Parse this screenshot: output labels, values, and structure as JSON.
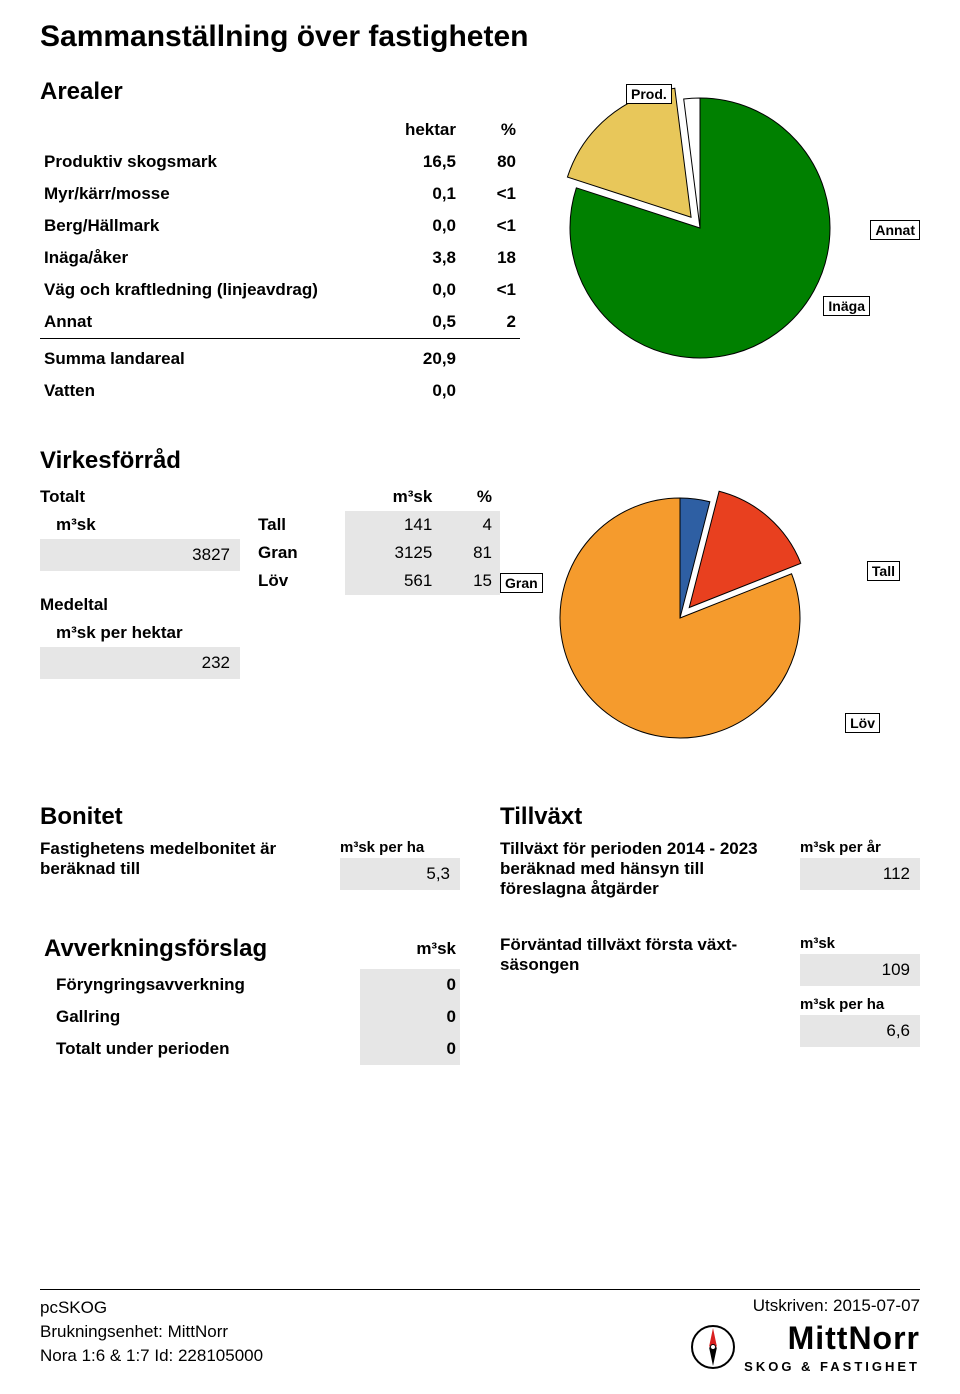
{
  "title": "Sammanställning över fastigheten",
  "arealer": {
    "heading": "Arealer",
    "col_hektar": "hektar",
    "col_pct": "%",
    "rows": [
      {
        "label": "Produktiv skogsmark",
        "hektar": "16,5",
        "pct": "80"
      },
      {
        "label": "Myr/kärr/mosse",
        "hektar": "0,1",
        "pct": "<1"
      },
      {
        "label": "Berg/Hällmark",
        "hektar": "0,0",
        "pct": "<1"
      },
      {
        "label": "Inäga/åker",
        "hektar": "3,8",
        "pct": "18"
      },
      {
        "label": "Väg och kraftledning (linjeavdrag)",
        "hektar": "0,0",
        "pct": "<1"
      },
      {
        "label": "Annat",
        "hektar": "0,5",
        "pct": "2"
      }
    ],
    "summa_label": "Summa landareal",
    "summa_val": "20,9",
    "vatten_label": "Vatten",
    "vatten_val": "0,0",
    "pie": {
      "type": "pie",
      "slices": [
        {
          "label": "Prod.",
          "value": 80,
          "color": "#008000"
        },
        {
          "label": "Inäga",
          "value": 18,
          "color": "#e8c75a"
        },
        {
          "label": "Annat",
          "value": 2,
          "color": "#ffffff"
        }
      ],
      "explode_index": 1,
      "stroke": "#000000"
    }
  },
  "virkes": {
    "heading": "Virkesförråd",
    "totalt_label": "Totalt",
    "totalt_unit": "m³sk",
    "totalt_val": "3827",
    "col_m3sk": "m³sk",
    "col_pct": "%",
    "rows": [
      {
        "label": "Tall",
        "m3sk": "141",
        "pct": "4"
      },
      {
        "label": "Gran",
        "m3sk": "3125",
        "pct": "81"
      },
      {
        "label": "Löv",
        "m3sk": "561",
        "pct": "15"
      }
    ],
    "medeltal_label": "Medeltal",
    "medeltal_unit": "m³sk per hektar",
    "medeltal_val": "232",
    "pie": {
      "type": "pie",
      "slices": [
        {
          "label": "Tall",
          "value": 4,
          "color": "#2e5fa3"
        },
        {
          "label": "Löv",
          "value": 15,
          "color": "#e8401f"
        },
        {
          "label": "Gran",
          "value": 81,
          "color": "#f59b2d"
        }
      ],
      "explode_index": 1,
      "stroke": "#000000"
    }
  },
  "bonitet": {
    "heading": "Bonitet",
    "desc": "Fastighetens medelbonitet är beräknad till",
    "unit": "m³sk per ha",
    "val": "5,3"
  },
  "tillvaxt": {
    "heading": "Tillväxt",
    "desc": "Tillväxt för perioden 2014 - 2023 beräknad med hänsyn till föreslagna åtgärder",
    "unit": "m³sk per år",
    "val": "112"
  },
  "avverkning": {
    "heading": "Avverkningsförslag",
    "col_unit": "m³sk",
    "rows": [
      {
        "label": "Föryngringsavverkning",
        "val": "0"
      },
      {
        "label": "Gallring",
        "val": "0"
      },
      {
        "label": "Totalt under perioden",
        "val": "0"
      }
    ]
  },
  "forvantad": {
    "desc": "Förväntad tillväxt första växt-säsongen",
    "unit1": "m³sk",
    "val1": "109",
    "unit2": "m³sk per ha",
    "val2": "6,6"
  },
  "footer": {
    "pcskog": "pcSKOG",
    "bruk": "Brukningsenhet: MittNorr",
    "nora": "Nora 1:6 & 1:7 Id: 228105000",
    "utskriven": "Utskriven: 2015-07-07",
    "logo_main": "MittNorr",
    "logo_sub": "SKOG & FASTIGHET"
  }
}
